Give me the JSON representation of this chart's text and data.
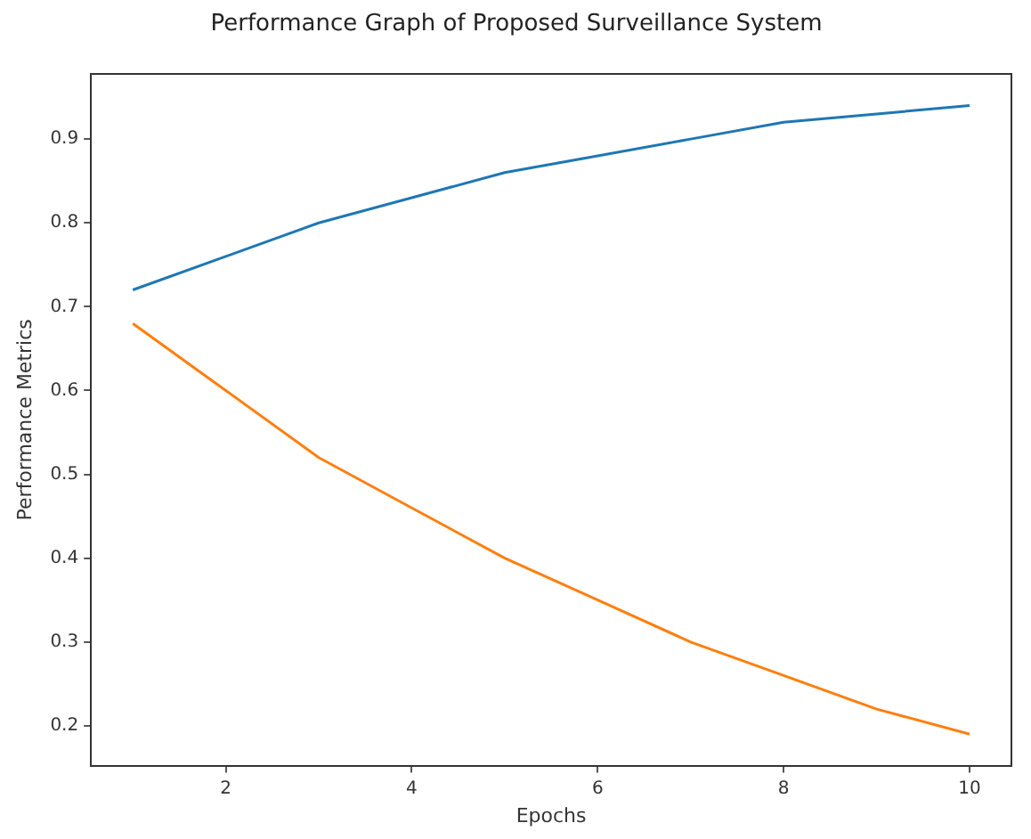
{
  "chart_data": {
    "type": "line",
    "title": "Performance Graph of Proposed Surveillance System",
    "xlabel": "Epochs",
    "ylabel": "Performance Metrics",
    "x": [
      1,
      2,
      3,
      4,
      5,
      6,
      7,
      8,
      9,
      10
    ],
    "series": [
      {
        "color": "#1f77b4",
        "values": [
          0.72,
          0.76,
          0.8,
          0.83,
          0.86,
          0.88,
          0.9,
          0.92,
          0.93,
          0.94
        ]
      },
      {
        "color": "#ff7f0e",
        "values": [
          0.68,
          0.6,
          0.52,
          0.46,
          0.4,
          0.35,
          0.3,
          0.26,
          0.22,
          0.19
        ]
      }
    ],
    "xlim": [
      0.55,
      10.45
    ],
    "xticks": [
      2,
      4,
      6,
      8,
      10
    ],
    "ylim": [
      0.1525,
      0.9775
    ],
    "yticks": [
      0.2,
      0.3,
      0.4,
      0.5,
      0.6,
      0.7,
      0.8,
      0.9
    ],
    "grid": false,
    "legend": false,
    "marker": "none",
    "line_style": "solid"
  }
}
